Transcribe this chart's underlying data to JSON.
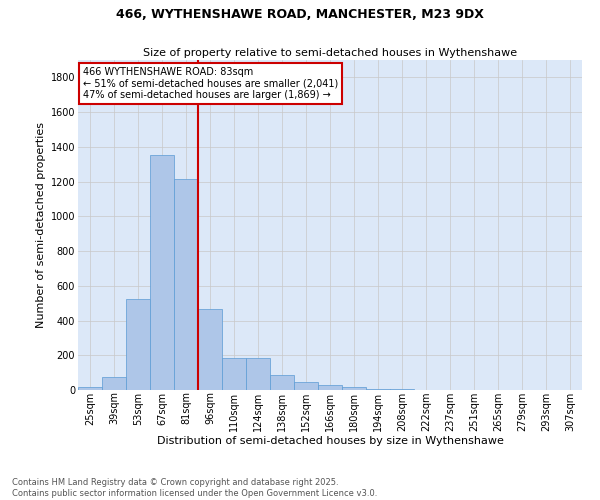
{
  "title": "466, WYTHENSHAWE ROAD, MANCHESTER, M23 9DX",
  "subtitle": "Size of property relative to semi-detached houses in Wythenshawe",
  "xlabel": "Distribution of semi-detached houses by size in Wythenshawe",
  "ylabel": "Number of semi-detached properties",
  "categories": [
    "25sqm",
    "39sqm",
    "53sqm",
    "67sqm",
    "81sqm",
    "96sqm",
    "110sqm",
    "124sqm",
    "138sqm",
    "152sqm",
    "166sqm",
    "180sqm",
    "194sqm",
    "208sqm",
    "222sqm",
    "237sqm",
    "251sqm",
    "265sqm",
    "279sqm",
    "293sqm",
    "307sqm"
  ],
  "values": [
    20,
    75,
    525,
    1355,
    1215,
    465,
    185,
    185,
    85,
    45,
    30,
    20,
    5,
    5,
    0,
    0,
    0,
    0,
    0,
    0,
    0
  ],
  "bar_color": "#aec6e8",
  "bar_edge_color": "#5b9bd5",
  "grid_color": "#c8c8c8",
  "bg_color": "#dce8f8",
  "annotation_title": "466 WYTHENSHAWE ROAD: 83sqm",
  "annotation_line1": "← 51% of semi-detached houses are smaller (2,041)",
  "annotation_line2": "47% of semi-detached houses are larger (1,869) →",
  "vline_color": "#cc0000",
  "footer_line1": "Contains HM Land Registry data © Crown copyright and database right 2025.",
  "footer_line2": "Contains public sector information licensed under the Open Government Licence v3.0.",
  "ylim": [
    0,
    1900
  ],
  "yticks": [
    0,
    200,
    400,
    600,
    800,
    1000,
    1200,
    1400,
    1600,
    1800
  ],
  "vline_pos": 4.5,
  "title_fontsize": 9,
  "subtitle_fontsize": 8,
  "xlabel_fontsize": 8,
  "ylabel_fontsize": 8,
  "tick_fontsize": 7,
  "footer_fontsize": 6,
  "annot_fontsize": 7
}
